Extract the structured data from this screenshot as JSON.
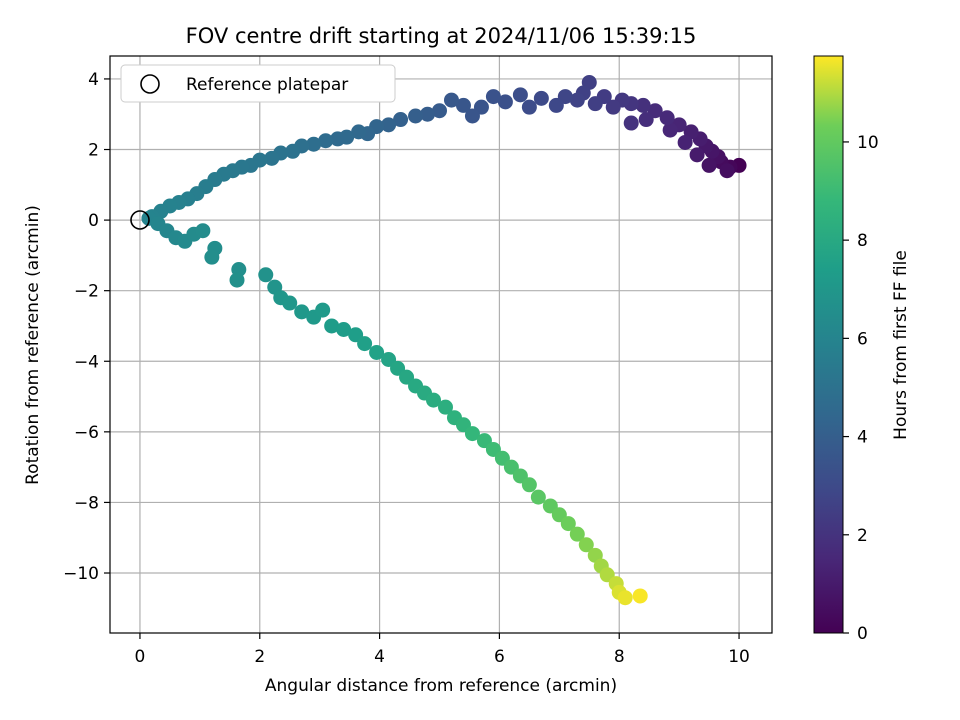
{
  "chart_data": {
    "type": "scatter",
    "title": "FOV centre drift starting at 2024/11/06 15:39:15",
    "xlabel": "Angular distance from reference (arcmin)",
    "ylabel": "Rotation from reference (arcmin)",
    "xlim": [
      -0.5,
      10.55
    ],
    "ylim": [
      -11.7,
      4.65
    ],
    "xticks": [
      0,
      2,
      4,
      6,
      8,
      10
    ],
    "yticks": [
      -10,
      -8,
      -6,
      -4,
      -2,
      0,
      2,
      4
    ],
    "grid": true,
    "colormap": "viridis",
    "colorbar": {
      "label": "Hours from first FF file",
      "range": [
        0,
        11.75
      ],
      "ticks": [
        0,
        2,
        4,
        6,
        8,
        10
      ]
    },
    "legend": {
      "position": "upper-left",
      "entries": [
        {
          "marker": "open-circle",
          "label": "Reference platepar"
        }
      ]
    },
    "reference_point": {
      "x": 0,
      "y": 0
    },
    "series": [
      {
        "marker": "filled-circle",
        "color_by": "hours",
        "points": [
          {
            "x": 10.0,
            "y": 1.55,
            "c": 0.0
          },
          {
            "x": 9.85,
            "y": 1.5,
            "c": 0.2
          },
          {
            "x": 9.7,
            "y": 1.65,
            "c": 0.4
          },
          {
            "x": 9.8,
            "y": 1.4,
            "c": 0.5
          },
          {
            "x": 9.65,
            "y": 1.8,
            "c": 0.6
          },
          {
            "x": 9.5,
            "y": 1.55,
            "c": 0.7
          },
          {
            "x": 9.55,
            "y": 1.95,
            "c": 0.8
          },
          {
            "x": 9.45,
            "y": 2.1,
            "c": 0.9
          },
          {
            "x": 9.3,
            "y": 1.85,
            "c": 1.0
          },
          {
            "x": 9.35,
            "y": 2.3,
            "c": 1.1
          },
          {
            "x": 9.2,
            "y": 2.5,
            "c": 1.2
          },
          {
            "x": 9.1,
            "y": 2.2,
            "c": 1.3
          },
          {
            "x": 9.0,
            "y": 2.7,
            "c": 1.4
          },
          {
            "x": 8.85,
            "y": 2.55,
            "c": 1.5
          },
          {
            "x": 8.8,
            "y": 2.9,
            "c": 1.6
          },
          {
            "x": 8.6,
            "y": 3.1,
            "c": 1.7
          },
          {
            "x": 8.45,
            "y": 2.85,
            "c": 1.8
          },
          {
            "x": 8.4,
            "y": 3.25,
            "c": 1.9
          },
          {
            "x": 8.2,
            "y": 2.75,
            "c": 2.0
          },
          {
            "x": 8.2,
            "y": 3.3,
            "c": 2.1
          },
          {
            "x": 8.05,
            "y": 3.4,
            "c": 2.2
          },
          {
            "x": 7.9,
            "y": 3.2,
            "c": 2.3
          },
          {
            "x": 7.75,
            "y": 3.5,
            "c": 2.4
          },
          {
            "x": 7.6,
            "y": 3.3,
            "c": 2.5
          },
          {
            "x": 7.5,
            "y": 3.9,
            "c": 2.55
          },
          {
            "x": 7.4,
            "y": 3.6,
            "c": 2.6
          },
          {
            "x": 7.3,
            "y": 3.4,
            "c": 2.7
          },
          {
            "x": 7.1,
            "y": 3.5,
            "c": 2.8
          },
          {
            "x": 6.95,
            "y": 3.25,
            "c": 2.9
          },
          {
            "x": 6.7,
            "y": 3.45,
            "c": 3.0
          },
          {
            "x": 6.5,
            "y": 3.2,
            "c": 3.1
          },
          {
            "x": 6.35,
            "y": 3.55,
            "c": 3.2
          },
          {
            "x": 6.1,
            "y": 3.35,
            "c": 3.3
          },
          {
            "x": 5.9,
            "y": 3.5,
            "c": 3.4
          },
          {
            "x": 5.7,
            "y": 3.2,
            "c": 3.5
          },
          {
            "x": 5.55,
            "y": 2.95,
            "c": 3.55
          },
          {
            "x": 5.4,
            "y": 3.25,
            "c": 3.6
          },
          {
            "x": 5.2,
            "y": 3.4,
            "c": 3.7
          },
          {
            "x": 5.0,
            "y": 3.1,
            "c": 3.8
          },
          {
            "x": 4.8,
            "y": 3.0,
            "c": 3.9
          },
          {
            "x": 4.6,
            "y": 2.95,
            "c": 4.0
          },
          {
            "x": 4.35,
            "y": 2.85,
            "c": 4.1
          },
          {
            "x": 4.15,
            "y": 2.7,
            "c": 4.2
          },
          {
            "x": 3.95,
            "y": 2.65,
            "c": 4.3
          },
          {
            "x": 3.8,
            "y": 2.45,
            "c": 4.4
          },
          {
            "x": 3.65,
            "y": 2.5,
            "c": 4.5
          },
          {
            "x": 3.45,
            "y": 2.35,
            "c": 4.55
          },
          {
            "x": 3.3,
            "y": 2.3,
            "c": 4.6
          },
          {
            "x": 3.1,
            "y": 2.25,
            "c": 4.7
          },
          {
            "x": 2.9,
            "y": 2.15,
            "c": 4.8
          },
          {
            "x": 2.7,
            "y": 2.1,
            "c": 4.9
          },
          {
            "x": 2.55,
            "y": 1.95,
            "c": 5.0
          },
          {
            "x": 2.35,
            "y": 1.9,
            "c": 5.05
          },
          {
            "x": 2.2,
            "y": 1.75,
            "c": 5.1
          },
          {
            "x": 2.0,
            "y": 1.7,
            "c": 5.2
          },
          {
            "x": 1.85,
            "y": 1.55,
            "c": 5.25
          },
          {
            "x": 1.7,
            "y": 1.5,
            "c": 5.3
          },
          {
            "x": 1.55,
            "y": 1.4,
            "c": 5.4
          },
          {
            "x": 1.4,
            "y": 1.3,
            "c": 5.45
          },
          {
            "x": 1.25,
            "y": 1.15,
            "c": 5.5
          },
          {
            "x": 1.1,
            "y": 0.95,
            "c": 5.6
          },
          {
            "x": 0.95,
            "y": 0.75,
            "c": 5.65
          },
          {
            "x": 0.8,
            "y": 0.6,
            "c": 5.7
          },
          {
            "x": 0.65,
            "y": 0.5,
            "c": 5.8
          },
          {
            "x": 0.5,
            "y": 0.4,
            "c": 5.85
          },
          {
            "x": 0.35,
            "y": 0.25,
            "c": 5.9
          },
          {
            "x": 0.2,
            "y": 0.1,
            "c": 5.95
          },
          {
            "x": 0.15,
            "y": 0.05,
            "c": 6.0
          },
          {
            "x": 0.3,
            "y": -0.1,
            "c": 6.05
          },
          {
            "x": 0.45,
            "y": -0.3,
            "c": 6.1
          },
          {
            "x": 0.6,
            "y": -0.5,
            "c": 6.2
          },
          {
            "x": 0.75,
            "y": -0.6,
            "c": 6.3
          },
          {
            "x": 0.9,
            "y": -0.4,
            "c": 6.35
          },
          {
            "x": 1.05,
            "y": -0.3,
            "c": 6.4
          },
          {
            "x": 1.25,
            "y": -0.8,
            "c": 6.5
          },
          {
            "x": 1.2,
            "y": -1.05,
            "c": 6.55
          },
          {
            "x": 1.65,
            "y": -1.4,
            "c": 6.6
          },
          {
            "x": 1.62,
            "y": -1.7,
            "c": 6.65
          },
          {
            "x": 2.1,
            "y": -1.55,
            "c": 6.75
          },
          {
            "x": 2.25,
            "y": -1.9,
            "c": 6.85
          },
          {
            "x": 2.35,
            "y": -2.2,
            "c": 6.95
          },
          {
            "x": 2.5,
            "y": -2.35,
            "c": 7.0
          },
          {
            "x": 2.7,
            "y": -2.6,
            "c": 7.1
          },
          {
            "x": 2.9,
            "y": -2.75,
            "c": 7.15
          },
          {
            "x": 3.05,
            "y": -2.55,
            "c": 7.2
          },
          {
            "x": 3.2,
            "y": -3.0,
            "c": 7.3
          },
          {
            "x": 3.4,
            "y": -3.1,
            "c": 7.35
          },
          {
            "x": 3.6,
            "y": -3.25,
            "c": 7.4
          },
          {
            "x": 3.75,
            "y": -3.5,
            "c": 7.5
          },
          {
            "x": 3.95,
            "y": -3.75,
            "c": 7.6
          },
          {
            "x": 4.15,
            "y": -3.95,
            "c": 7.7
          },
          {
            "x": 4.3,
            "y": -4.2,
            "c": 7.8
          },
          {
            "x": 4.45,
            "y": -4.45,
            "c": 7.9
          },
          {
            "x": 4.6,
            "y": -4.7,
            "c": 8.0
          },
          {
            "x": 4.75,
            "y": -4.9,
            "c": 8.1
          },
          {
            "x": 4.9,
            "y": -5.1,
            "c": 8.2
          },
          {
            "x": 5.1,
            "y": -5.3,
            "c": 8.3
          },
          {
            "x": 5.25,
            "y": -5.6,
            "c": 8.45
          },
          {
            "x": 5.4,
            "y": -5.8,
            "c": 8.6
          },
          {
            "x": 5.55,
            "y": -6.05,
            "c": 8.75
          },
          {
            "x": 5.75,
            "y": -6.25,
            "c": 8.9
          },
          {
            "x": 5.9,
            "y": -6.5,
            "c": 9.05
          },
          {
            "x": 6.05,
            "y": -6.75,
            "c": 9.2
          },
          {
            "x": 6.2,
            "y": -7.0,
            "c": 9.35
          },
          {
            "x": 6.35,
            "y": -7.25,
            "c": 9.5
          },
          {
            "x": 6.5,
            "y": -7.5,
            "c": 9.65
          },
          {
            "x": 6.65,
            "y": -7.85,
            "c": 9.8
          },
          {
            "x": 6.85,
            "y": -8.1,
            "c": 9.95
          },
          {
            "x": 7.0,
            "y": -8.35,
            "c": 10.1
          },
          {
            "x": 7.15,
            "y": -8.6,
            "c": 10.25
          },
          {
            "x": 7.3,
            "y": -8.9,
            "c": 10.4
          },
          {
            "x": 7.45,
            "y": -9.2,
            "c": 10.55
          },
          {
            "x": 7.6,
            "y": -9.5,
            "c": 10.7
          },
          {
            "x": 7.7,
            "y": -9.8,
            "c": 10.85
          },
          {
            "x": 7.8,
            "y": -10.05,
            "c": 11.0
          },
          {
            "x": 7.95,
            "y": -10.3,
            "c": 11.2
          },
          {
            "x": 8.0,
            "y": -10.55,
            "c": 11.4
          },
          {
            "x": 8.1,
            "y": -10.7,
            "c": 11.55
          },
          {
            "x": 8.35,
            "y": -10.65,
            "c": 11.7
          }
        ]
      }
    ]
  }
}
